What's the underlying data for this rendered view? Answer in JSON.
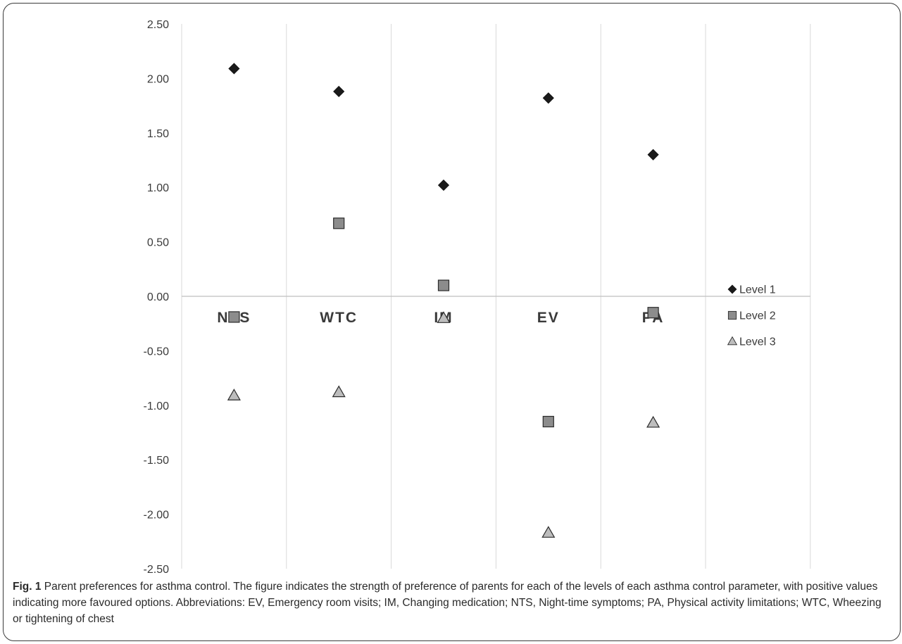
{
  "chart_data": {
    "type": "scatter",
    "categories": [
      "NTS",
      "WTC",
      "IM",
      "EV",
      "PA"
    ],
    "ylim": [
      -2.5,
      2.5
    ],
    "yticks": [
      "2.50",
      "2.00",
      "1.50",
      "1.00",
      "0.50",
      "0.00",
      "-0.50",
      "-1.00",
      "-1.50",
      "-2.00",
      "-2.50"
    ],
    "ytick_values": [
      2.5,
      2.0,
      1.5,
      1.0,
      0.5,
      0.0,
      -0.5,
      -1.0,
      -1.5,
      -2.0,
      -2.5
    ],
    "grid": "vertical",
    "legend_position": "right",
    "series": [
      {
        "name": "Level 1",
        "marker": "diamond",
        "color": "#1a1a1a",
        "values": [
          2.09,
          1.88,
          1.02,
          1.82,
          1.3
        ]
      },
      {
        "name": "Level 2",
        "marker": "square",
        "color": "#8c8c8c",
        "values": [
          -0.19,
          0.67,
          0.1,
          -1.15,
          -0.15
        ]
      },
      {
        "name": "Level 3",
        "marker": "triangle",
        "color": "#bdbdbd",
        "values": [
          -0.91,
          -0.88,
          -0.2,
          -2.17,
          -1.16
        ]
      }
    ]
  },
  "caption": {
    "label": "Fig. 1",
    "text": " Parent preferences for asthma control. The figure indicates the strength of preference of parents for each of the levels of each asthma control parameter, with positive values indicating more favoured options. Abbreviations: EV, Emergency room visits; IM, Changing medication; NTS, Night-time symptoms; PA, Physical activity limitations; WTC, Wheezing or tightening of chest"
  }
}
